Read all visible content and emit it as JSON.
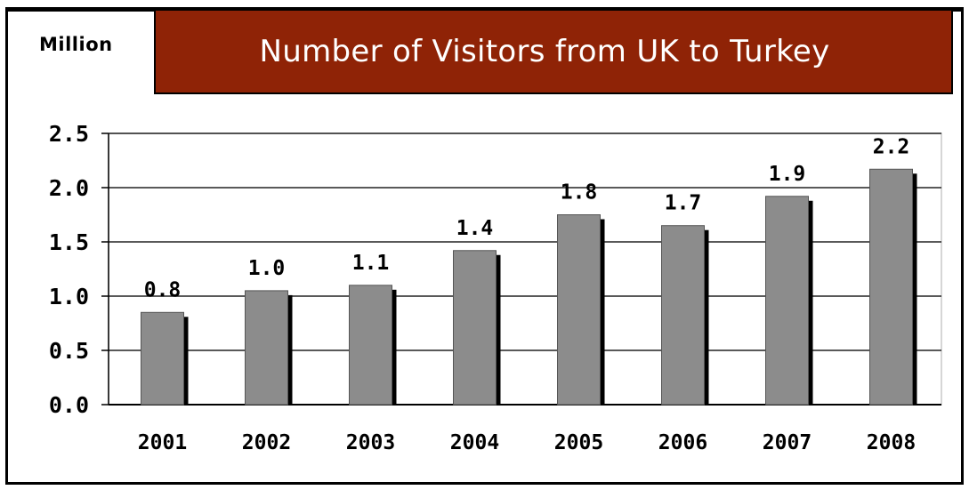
{
  "chart_data": {
    "type": "bar",
    "title": "Number of Visitors from UK to Turkey",
    "ylabel": "Million",
    "xlabel": "",
    "categories": [
      "2001",
      "2002",
      "2003",
      "2004",
      "2005",
      "2006",
      "2007",
      "2008"
    ],
    "values": [
      0.8,
      1.0,
      1.1,
      1.4,
      1.8,
      1.7,
      1.9,
      2.2
    ],
    "bar_heights": [
      0.85,
      1.05,
      1.1,
      1.42,
      1.75,
      1.65,
      1.92,
      2.17
    ],
    "data_labels": [
      "0.8",
      "1.0",
      "1.1",
      "1.4",
      "1.8",
      "1.7",
      "1.9",
      "2.2"
    ],
    "ylim": [
      0,
      2.5
    ],
    "yticks": [
      "0.0",
      "0.5",
      "1.0",
      "1.5",
      "2.0",
      "2.5"
    ],
    "grid": true,
    "legend": "none",
    "colors": {
      "bar": "#8c8c8c",
      "bar_shadow": "#000000",
      "title_banner": "#8f2306",
      "title_text": "#ffffff"
    }
  }
}
